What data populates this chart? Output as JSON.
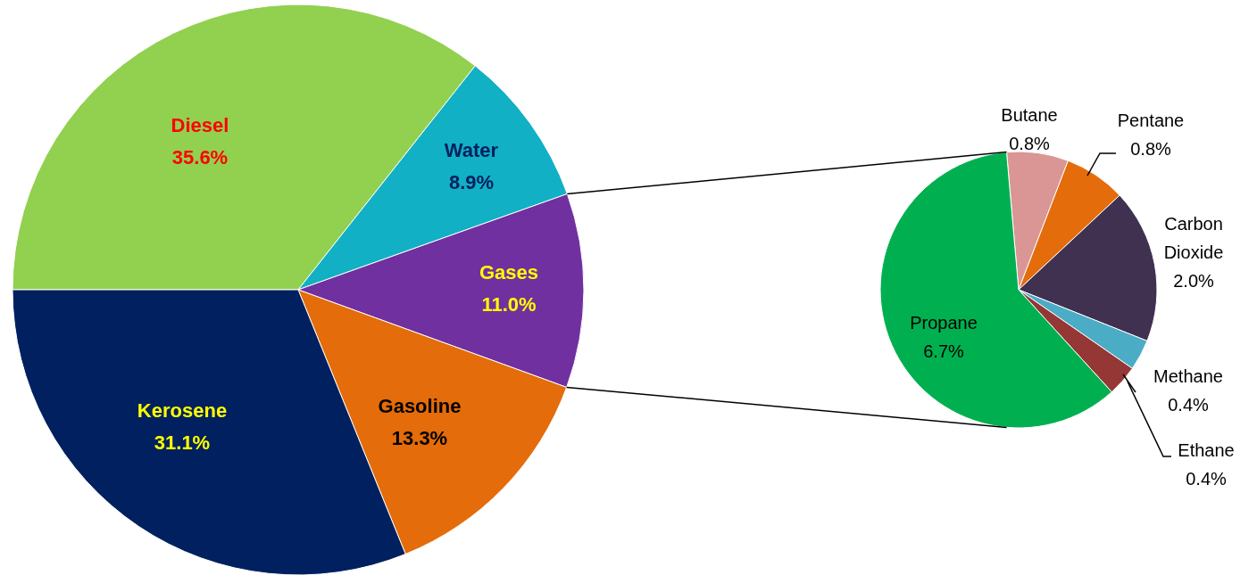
{
  "chart_data": [
    {
      "type": "pie",
      "categories": [
        "Diesel",
        "Water",
        "Gases",
        "Gasoline",
        "Kerosene"
      ],
      "values": [
        35.6,
        8.9,
        11.0,
        13.3,
        31.1
      ],
      "value_labels": [
        "35.6%",
        "8.9%",
        "11.0%",
        "13.3%",
        "31.1%"
      ],
      "colors": [
        "#92d050",
        "#12b0c4",
        "#7030a0",
        "#e46c0a",
        "#002060"
      ]
    },
    {
      "type": "pie",
      "categories": [
        "Butane",
        "Pentane",
        "Carbon Dioxide",
        "Methane",
        "Ethane",
        "Propane"
      ],
      "values": [
        0.8,
        0.8,
        2.0,
        0.4,
        0.4,
        6.7
      ],
      "value_labels": [
        "0.8%",
        "0.8%",
        "2.0%",
        "0.4%",
        "0.4%",
        "6.7%"
      ],
      "colors": [
        "#d99694",
        "#e46c0a",
        "#403151",
        "#4bacc6",
        "#953735",
        "#00b050"
      ]
    }
  ]
}
